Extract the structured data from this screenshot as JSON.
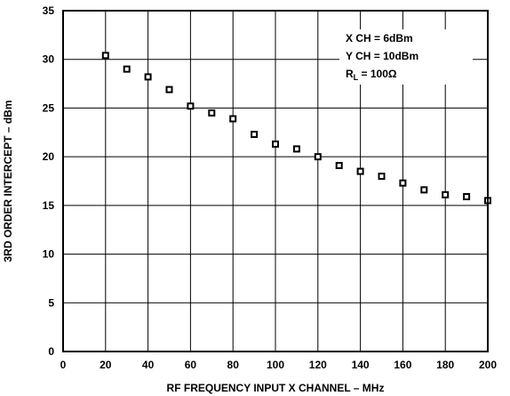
{
  "chart_data": {
    "type": "scatter",
    "title": "",
    "xlabel": "RF FREQUENCY INPUT X CHANNEL – MHz",
    "ylabel": "3RD ORDER INTERCEPT – dBm",
    "xlim": [
      0,
      200
    ],
    "ylim": [
      0,
      35
    ],
    "x_ticks": [
      "0",
      "20",
      "40",
      "60",
      "80",
      "100",
      "120",
      "140",
      "160",
      "180",
      "200"
    ],
    "y_ticks": [
      "0",
      "5",
      "10",
      "15",
      "20",
      "25",
      "30",
      "35"
    ],
    "grid": true,
    "marker": "open-square",
    "series": [
      {
        "x": [
          20,
          30,
          40,
          50,
          60,
          70,
          80,
          90,
          100,
          110,
          120,
          130,
          140,
          150,
          160,
          170,
          180,
          190,
          200
        ],
        "y": [
          30.4,
          29.0,
          28.2,
          26.9,
          25.2,
          24.5,
          23.9,
          22.3,
          21.3,
          20.8,
          20.0,
          19.1,
          18.5,
          18.0,
          17.3,
          16.6,
          16.1,
          15.9,
          15.5
        ]
      }
    ],
    "annotation": {
      "line1": "X CH = 6dBm",
      "line2": "Y CH = 10dBm",
      "line3_main": "R",
      "line3_sub": "L",
      "line3_rest": " = 100Ω"
    }
  }
}
